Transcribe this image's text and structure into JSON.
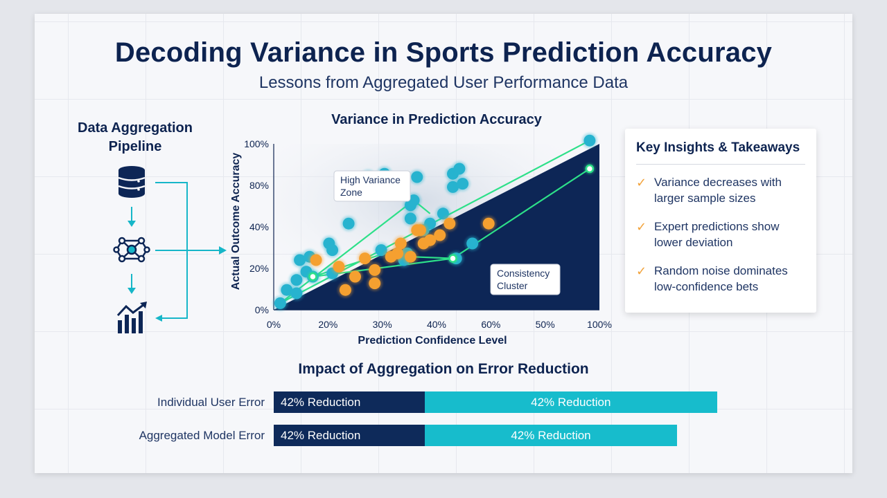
{
  "title": "Decoding Variance in Sports Prediction Accuracy",
  "subtitle": "Lessons from Aggregated User Performance Data",
  "pipeline": {
    "title_line1": "Data Aggregation",
    "title_line2": "Pipeline",
    "icons": [
      "database-icon",
      "network-icon",
      "growth-chart-icon"
    ],
    "color": "#16b6c8"
  },
  "insights": {
    "title": "Key Insights & Takeaways",
    "items": [
      {
        "line1": "Variance decreases with",
        "line2": "larger sample sizes"
      },
      {
        "line1": "Expert predictions show",
        "line2": "lower deviation"
      },
      {
        "line1": "Random noise dominates",
        "line2": "low-confidence bets"
      }
    ],
    "check_color": "#f2a23a"
  },
  "chart_data": [
    {
      "type": "scatter",
      "title": "Variance in Prediction Accuracy",
      "xlabel": "Prediction Confidence Level",
      "ylabel": "Actual Outcome Accuracy",
      "x_tick_labels": [
        "0%",
        "20%",
        "30%",
        "40%",
        "60%",
        "50%",
        "100%"
      ],
      "y_tick_labels": [
        "0%",
        "20%",
        "40%",
        "80%",
        "100%"
      ],
      "xlim": [
        0,
        100
      ],
      "ylim": [
        0,
        100
      ],
      "grid": false,
      "legend": "none",
      "annotations": [
        {
          "line1": "High Variance",
          "line2": "Zone"
        },
        {
          "line1": "Consistency",
          "line2": "Cluster"
        }
      ],
      "colors": {
        "teal": "#27b3cf",
        "orange": "#f5a030",
        "green": "#2de089",
        "dark": "#0d2656"
      },
      "series": [
        {
          "x": [
            2,
            4,
            7,
            7,
            8,
            10,
            11,
            12,
            17,
            18,
            18,
            23,
            29,
            33,
            34,
            40,
            41,
            42,
            42,
            43,
            44,
            46,
            48,
            52,
            55,
            55,
            56,
            57,
            58,
            61,
            97
          ],
          "y": [
            4,
            12,
            18,
            10,
            30,
            23,
            32,
            20,
            40,
            22,
            36,
            52,
            80,
            36,
            82,
            30,
            34,
            55,
            63,
            66,
            80,
            48,
            52,
            58,
            82,
            74,
            31,
            85,
            76,
            40,
            102
          ]
        },
        {
          "x": [
            13,
            20,
            22,
            25,
            28,
            31,
            31,
            36,
            38,
            39,
            42,
            44,
            45,
            46,
            48,
            51,
            54,
            66
          ],
          "y": [
            30,
            26,
            12,
            20,
            31,
            24,
            16,
            32,
            34,
            40,
            32,
            48,
            48,
            40,
            42,
            45,
            52,
            52
          ]
        }
      ]
    },
    {
      "type": "bar",
      "title": "Impact of Aggregation on Error Reduction",
      "categories": [
        "Individual User Error",
        "Aggregated Model Error"
      ],
      "series": [
        {
          "values": [
            34,
            34
          ],
          "labels": [
            "42% Reduction",
            "42% Reduction"
          ]
        },
        {
          "values": [
            66,
            57
          ],
          "labels": [
            "42% Reduction",
            "42% Reduction"
          ]
        }
      ],
      "xlim": [
        0,
        100
      ],
      "colors": [
        "#0e2a5a",
        "#17bccc"
      ],
      "legend": "none"
    }
  ]
}
